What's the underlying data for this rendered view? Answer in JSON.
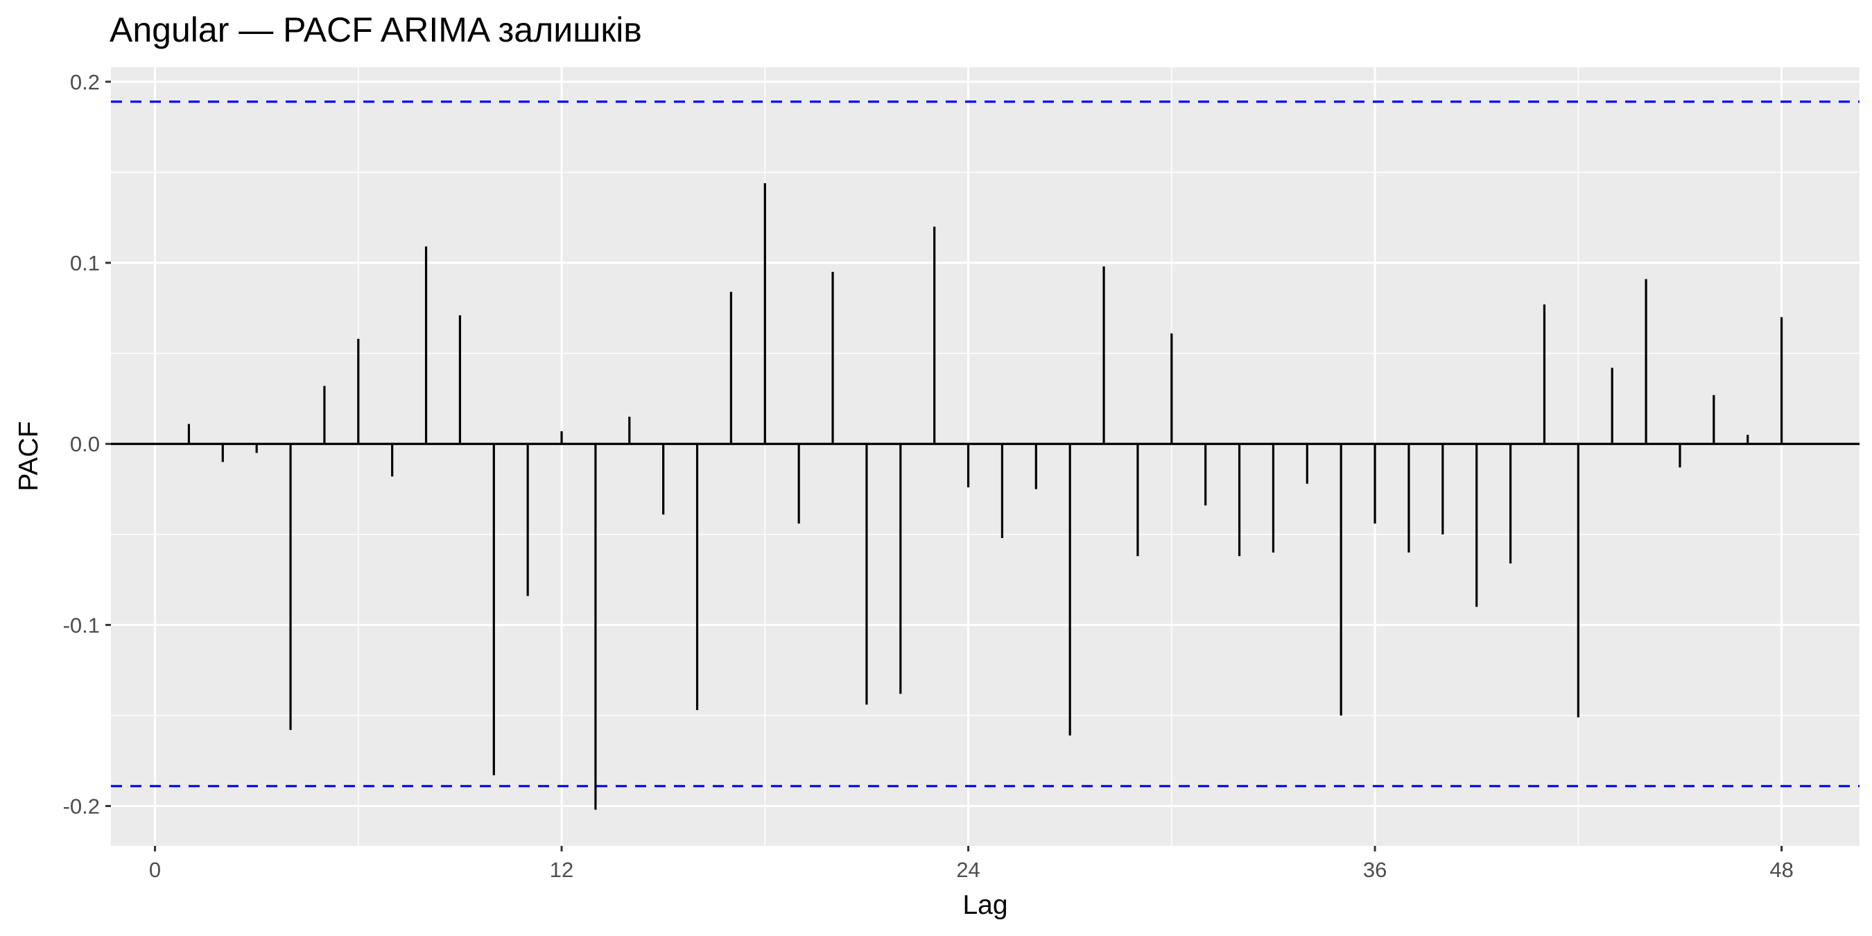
{
  "chart_data": {
    "type": "bar",
    "title": "Angular — PACF ARIMA залишків",
    "xlabel": "Lag",
    "ylabel": "PACF",
    "xlim": [
      -1.3,
      50.3
    ],
    "ylim": [
      -0.222,
      0.208
    ],
    "x_ticks": [
      0,
      12,
      24,
      36,
      48
    ],
    "x_tick_labels": [
      "0",
      "12",
      "24",
      "36",
      "48"
    ],
    "y_ticks": [
      -0.2,
      -0.1,
      0.0,
      0.1,
      0.2
    ],
    "y_tick_labels": [
      "-0.2",
      "-0.1",
      "0.0",
      "0.1",
      "0.2"
    ],
    "confidence_bounds": [
      0.189,
      -0.189
    ],
    "grid": true,
    "colors": {
      "panel": "#ebebeb",
      "grid": "#ffffff",
      "bars": "#000000",
      "bounds": "#0000ff",
      "tick_text": "#4d4d4d",
      "axis_ticks": "#333333"
    },
    "lags": [
      1,
      2,
      3,
      4,
      5,
      6,
      7,
      8,
      9,
      10,
      11,
      12,
      13,
      14,
      15,
      16,
      17,
      18,
      19,
      20,
      21,
      22,
      23,
      24,
      25,
      26,
      27,
      28,
      29,
      30,
      31,
      32,
      33,
      34,
      35,
      36,
      37,
      38,
      39,
      40,
      41,
      42,
      43,
      44,
      45,
      46,
      47,
      48
    ],
    "values": [
      0.011,
      -0.01,
      -0.005,
      -0.158,
      0.032,
      0.058,
      -0.018,
      0.109,
      0.071,
      -0.183,
      -0.084,
      0.007,
      -0.202,
      0.015,
      -0.039,
      -0.147,
      0.084,
      0.144,
      -0.044,
      0.095,
      -0.144,
      -0.138,
      0.12,
      -0.024,
      -0.052,
      -0.025,
      -0.161,
      0.098,
      -0.062,
      0.061,
      -0.034,
      -0.062,
      -0.06,
      -0.022,
      -0.15,
      -0.044,
      -0.06,
      -0.05,
      -0.09,
      -0.066,
      0.077,
      -0.151,
      0.042,
      0.091,
      -0.013,
      0.027,
      0.005,
      0.07
    ]
  }
}
